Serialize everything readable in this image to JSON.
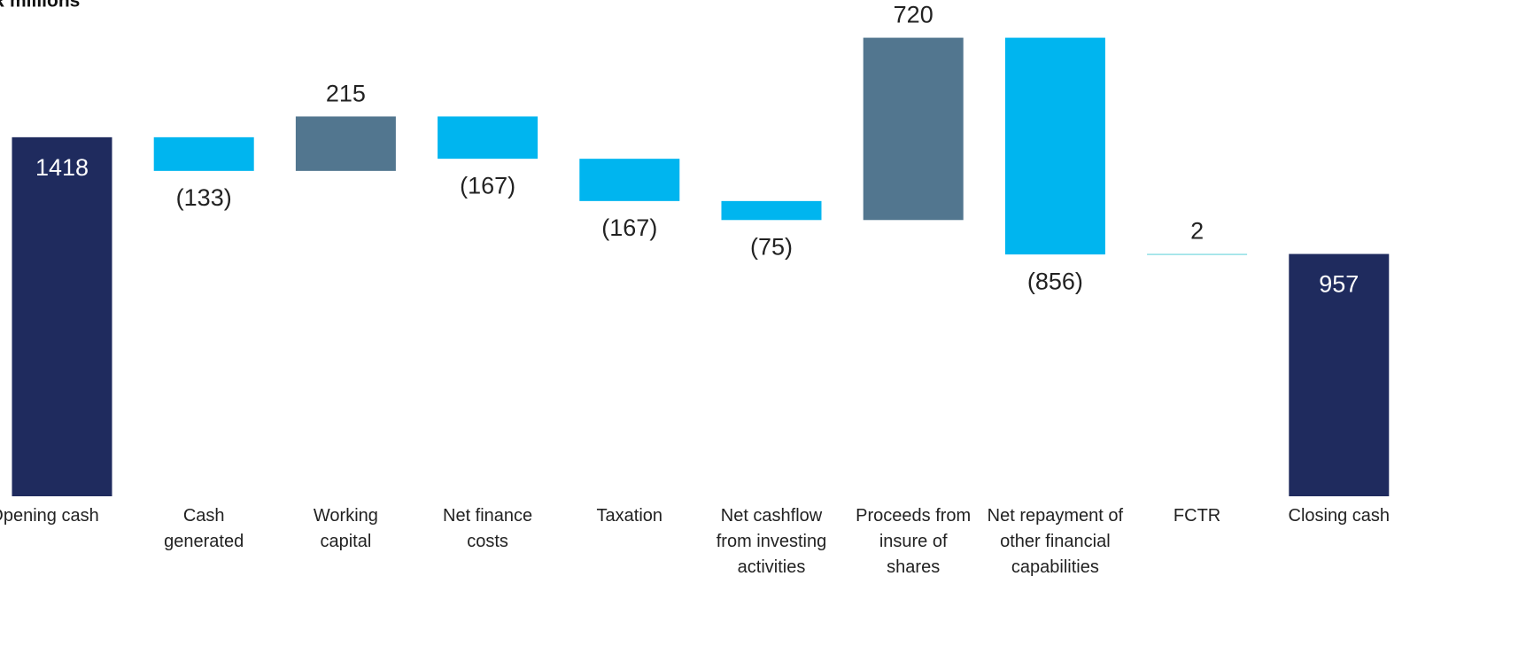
{
  "chart_data": {
    "type": "waterfall",
    "title": "R millions",
    "categories": [
      "Opening cash",
      "Cash generated",
      "Working capital",
      "Net finance costs",
      "Taxation",
      "Net cashflow from investing activities",
      "Proceeds from insure of shares",
      "Net repayment of other financial capabilities",
      "FCTR",
      "Closing cash"
    ],
    "values": [
      1418,
      -133,
      215,
      -167,
      -167,
      -75,
      720,
      -856,
      2,
      957
    ],
    "value_labels": [
      "1418",
      "(133)",
      "215",
      "(167)",
      "(167)",
      "(75)",
      "720",
      "(856)",
      "2",
      "957"
    ],
    "totals": [
      true,
      false,
      false,
      false,
      false,
      false,
      false,
      false,
      false,
      true
    ],
    "colors": [
      "#1f2b5e",
      "#00b5ef",
      "#52768f",
      "#00b5ef",
      "#00b5ef",
      "#00b5ef",
      "#52768f",
      "#00b5ef",
      "#5ad0d8",
      "#1f2b5e"
    ],
    "ylim": [
      0,
      1960
    ]
  }
}
